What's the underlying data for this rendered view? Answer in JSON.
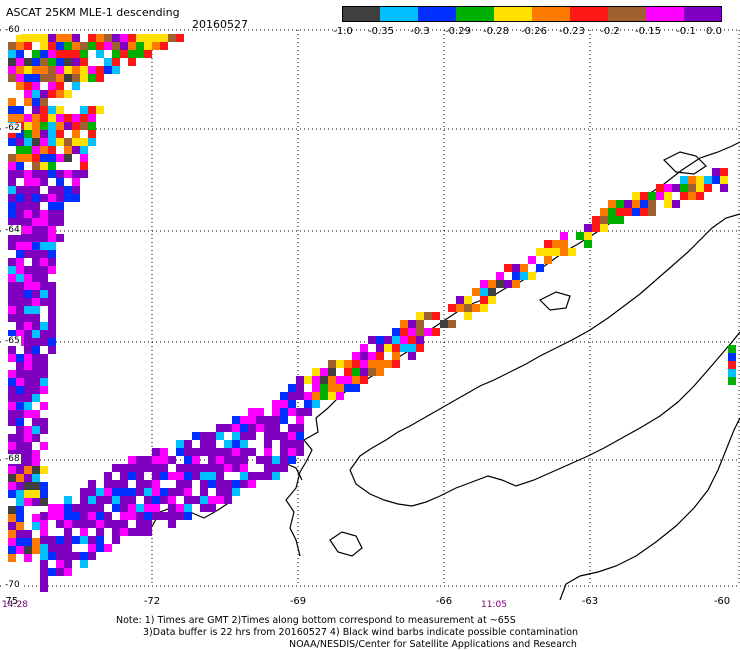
{
  "header": {
    "title": "ASCAT 25KM MLE-1 descending",
    "date": "20160527"
  },
  "colorbar": {
    "colors": [
      "#3f3f3f",
      "#00c0ff",
      "#0030ff",
      "#00b000",
      "#ffe000",
      "#ff7a00",
      "#ff1818",
      "#a06030",
      "#ff00ff",
      "#8000c0"
    ],
    "labels": [
      "-1.0",
      "-0.35",
      "-0.3",
      "-0.29",
      "-0.28",
      "-0.26",
      "-0.23",
      "-0.2",
      "-0.15",
      "-0.1",
      "0.0"
    ]
  },
  "map": {
    "lat_labels": [
      "-60",
      "-62",
      "-64",
      "-65",
      "-68",
      "-70"
    ],
    "lon_labels": [
      "-75",
      "-72",
      "-69",
      "-66",
      "-63",
      "-60"
    ],
    "time_labels": [
      "14:28",
      "11:05"
    ]
  },
  "notes": {
    "line1": "Note: 1) Times are GMT 2)Times along bottom correspond to measurement at ~65S",
    "line2": "3)Data buffer is 22 hrs from 20160527 4) Black wind barbs indicate possible contamination",
    "line3": "NOAA/NESDIS/Center for Satellite Applications and Research"
  }
}
